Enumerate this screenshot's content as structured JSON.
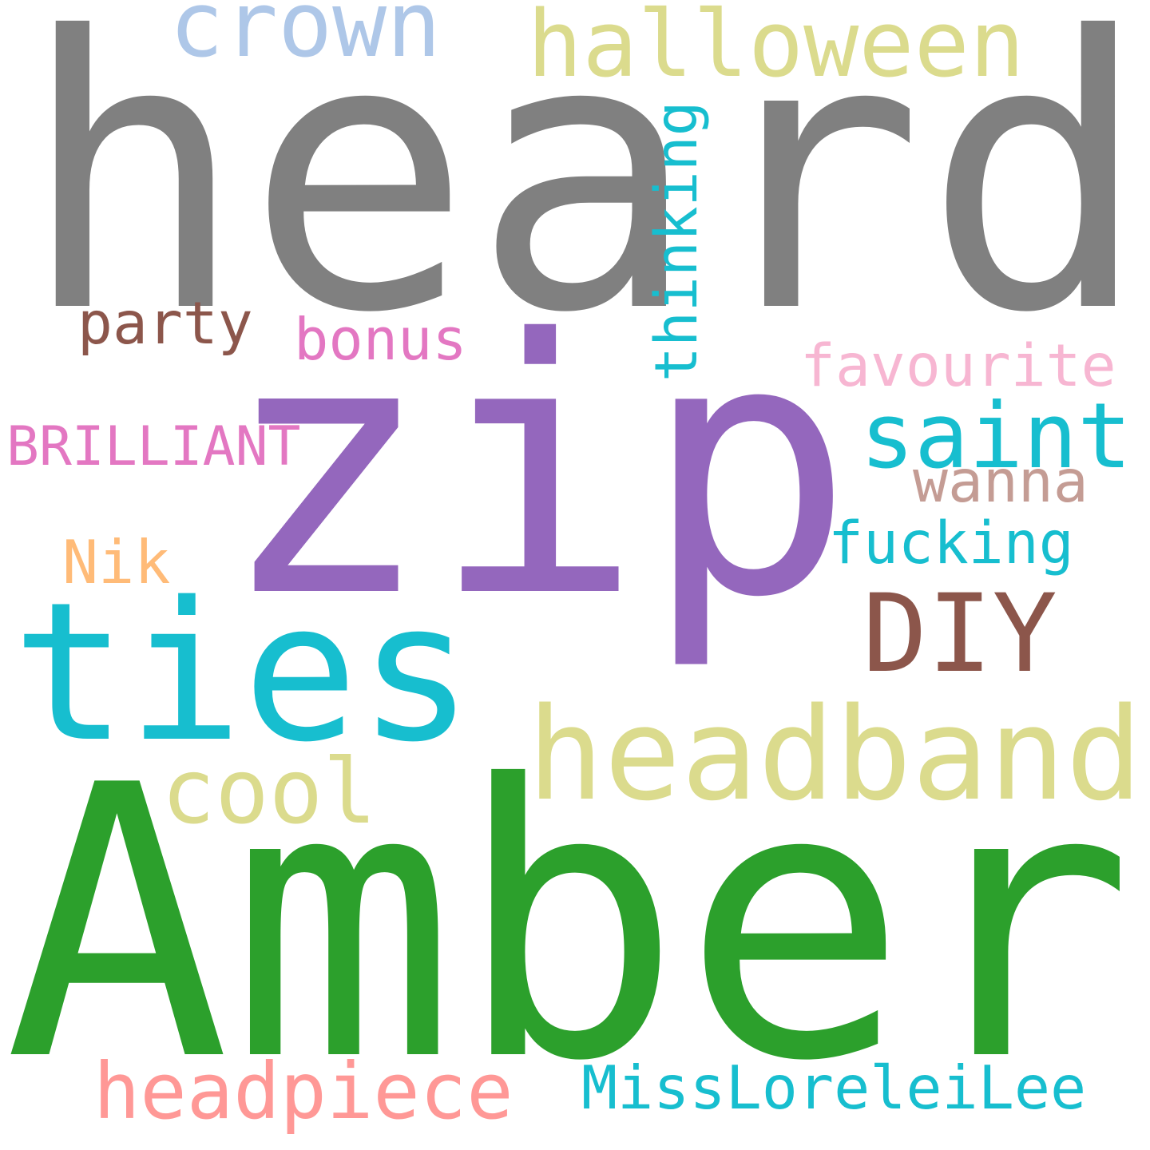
{
  "words": [
    {
      "text": "heard",
      "color": "#808080"
    },
    {
      "text": "zip",
      "color": "#9467bd"
    },
    {
      "text": "Amber",
      "color": "#2ca02c"
    },
    {
      "text": "ties",
      "color": "#17becf"
    },
    {
      "text": "headband",
      "color": "#dbdb8d"
    },
    {
      "text": "DIY",
      "color": "#8c564b"
    },
    {
      "text": "halloween",
      "color": "#dbdb8d"
    },
    {
      "text": "crown",
      "color": "#aec7e8"
    },
    {
      "text": "saint",
      "color": "#17becf"
    },
    {
      "text": "cool",
      "color": "#dbdb8d"
    },
    {
      "text": "headpiece",
      "color": "#ff9896"
    },
    {
      "text": "MissLoreleiLee",
      "color": "#17becf"
    },
    {
      "text": "fucking",
      "color": "#17becf"
    },
    {
      "text": "favourite",
      "color": "#f7b6d2"
    },
    {
      "text": "wanna",
      "color": "#c49c94"
    },
    {
      "text": "bonus",
      "color": "#e377c2"
    },
    {
      "text": "party",
      "color": "#8c564b"
    },
    {
      "text": "BRILLIANT",
      "color": "#e377c2"
    },
    {
      "text": "Nik",
      "color": "#ffbb78"
    },
    {
      "text": "thinking",
      "color": "#17becf"
    }
  ]
}
